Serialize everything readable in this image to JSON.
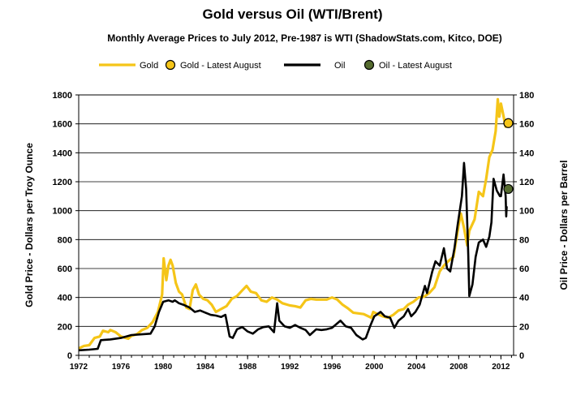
{
  "chart_data": {
    "type": "line",
    "title": "Gold versus Oil (WTI/Brent)",
    "subtitle": "Monthly Average Prices to July 2012, Pre-1987 is WTI (ShadowStats.com, Kitco, DOE)",
    "ylabel_left": "Gold Price - Dollars per Troy Ounce",
    "ylabel_right": "Oil Price - Dollars per Barrel",
    "xlim": [
      1972,
      2013.2
    ],
    "ylim_left": [
      0,
      1800
    ],
    "ylim_right": [
      0,
      180
    ],
    "x_ticks": [
      1972,
      1976,
      1980,
      1984,
      1988,
      1992,
      1996,
      2000,
      2004,
      2008,
      2012
    ],
    "y_ticks_left": [
      0,
      200,
      400,
      600,
      800,
      1000,
      1200,
      1400,
      1600,
      1800
    ],
    "y_ticks_right": [
      0,
      20,
      40,
      60,
      80,
      100,
      120,
      140,
      160,
      180
    ],
    "grid": "horizontal",
    "legend_position": "top",
    "colors": {
      "gold": "#f5c518",
      "gold_marker": "#f5c518",
      "oil": "#000000",
      "oil_marker": "#556b2f"
    },
    "legend": [
      {
        "label": "Gold",
        "kind": "line",
        "color": "#f5c518"
      },
      {
        "label": "Gold - Latest August",
        "kind": "marker",
        "color": "#f5c518"
      },
      {
        "label": "Oil",
        "kind": "line",
        "color": "#000000"
      },
      {
        "label": "Oil - Latest August",
        "kind": "marker",
        "color": "#556b2f"
      }
    ],
    "series": [
      {
        "name": "Gold",
        "axis": "left",
        "points": [
          [
            1972.0,
            48
          ],
          [
            1972.5,
            65
          ],
          [
            1973.0,
            70
          ],
          [
            1973.5,
            120
          ],
          [
            1974.0,
            130
          ],
          [
            1974.3,
            170
          ],
          [
            1974.8,
            160
          ],
          [
            1975.0,
            175
          ],
          [
            1975.5,
            160
          ],
          [
            1976.0,
            130
          ],
          [
            1976.7,
            115
          ],
          [
            1977.0,
            135
          ],
          [
            1977.5,
            145
          ],
          [
            1978.0,
            175
          ],
          [
            1978.5,
            190
          ],
          [
            1979.0,
            230
          ],
          [
            1979.5,
            300
          ],
          [
            1979.9,
            420
          ],
          [
            1980.05,
            670
          ],
          [
            1980.3,
            520
          ],
          [
            1980.5,
            620
          ],
          [
            1980.7,
            660
          ],
          [
            1980.9,
            620
          ],
          [
            1981.2,
            500
          ],
          [
            1981.5,
            440
          ],
          [
            1981.8,
            420
          ],
          [
            1982.2,
            330
          ],
          [
            1982.5,
            320
          ],
          [
            1982.8,
            450
          ],
          [
            1983.1,
            490
          ],
          [
            1983.4,
            420
          ],
          [
            1983.8,
            390
          ],
          [
            1984.2,
            380
          ],
          [
            1984.6,
            350
          ],
          [
            1985.0,
            300
          ],
          [
            1985.5,
            320
          ],
          [
            1986.0,
            340
          ],
          [
            1986.5,
            390
          ],
          [
            1987.0,
            410
          ],
          [
            1987.5,
            450
          ],
          [
            1987.9,
            480
          ],
          [
            1988.3,
            440
          ],
          [
            1988.8,
            430
          ],
          [
            1989.3,
            380
          ],
          [
            1989.8,
            370
          ],
          [
            1990.3,
            400
          ],
          [
            1990.8,
            385
          ],
          [
            1991.3,
            360
          ],
          [
            1992.0,
            345
          ],
          [
            1992.5,
            340
          ],
          [
            1993.0,
            330
          ],
          [
            1993.5,
            380
          ],
          [
            1994.0,
            390
          ],
          [
            1994.5,
            385
          ],
          [
            1995.0,
            385
          ],
          [
            1995.5,
            385
          ],
          [
            1996.0,
            400
          ],
          [
            1996.5,
            385
          ],
          [
            1997.0,
            350
          ],
          [
            1997.5,
            325
          ],
          [
            1998.0,
            295
          ],
          [
            1998.5,
            290
          ],
          [
            1999.0,
            285
          ],
          [
            1999.7,
            260
          ],
          [
            1999.9,
            300
          ],
          [
            2000.3,
            285
          ],
          [
            2000.8,
            270
          ],
          [
            2001.3,
            260
          ],
          [
            2001.8,
            280
          ],
          [
            2002.3,
            310
          ],
          [
            2002.8,
            320
          ],
          [
            2003.2,
            350
          ],
          [
            2003.7,
            370
          ],
          [
            2004.2,
            400
          ],
          [
            2004.7,
            405
          ],
          [
            2005.2,
            430
          ],
          [
            2005.7,
            470
          ],
          [
            2006.2,
            580
          ],
          [
            2006.6,
            620
          ],
          [
            2007.0,
            650
          ],
          [
            2007.5,
            680
          ],
          [
            2008.0,
            900
          ],
          [
            2008.2,
            980
          ],
          [
            2008.5,
            880
          ],
          [
            2008.8,
            760
          ],
          [
            2009.0,
            860
          ],
          [
            2009.5,
            940
          ],
          [
            2009.9,
            1130
          ],
          [
            2010.3,
            1100
          ],
          [
            2010.6,
            1220
          ],
          [
            2010.9,
            1370
          ],
          [
            2011.2,
            1420
          ],
          [
            2011.5,
            1550
          ],
          [
            2011.7,
            1770
          ],
          [
            2011.85,
            1650
          ],
          [
            2012.0,
            1740
          ],
          [
            2012.2,
            1670
          ],
          [
            2012.45,
            1580
          ],
          [
            2012.6,
            1590
          ]
        ]
      },
      {
        "name": "Gold - Latest August",
        "axis": "left",
        "marker": true,
        "points": [
          [
            2012.7,
            1605
          ]
        ]
      },
      {
        "name": "Oil",
        "axis": "right",
        "points": [
          [
            1972.0,
            3.5
          ],
          [
            1973.0,
            3.9
          ],
          [
            1973.8,
            4.5
          ],
          [
            1974.1,
            10.5
          ],
          [
            1975.0,
            11
          ],
          [
            1976.0,
            12
          ],
          [
            1977.0,
            14
          ],
          [
            1978.0,
            14.5
          ],
          [
            1978.8,
            15
          ],
          [
            1979.2,
            20
          ],
          [
            1979.6,
            30
          ],
          [
            1980.0,
            37
          ],
          [
            1980.5,
            38
          ],
          [
            1980.9,
            37
          ],
          [
            1981.1,
            38
          ],
          [
            1981.5,
            36
          ],
          [
            1981.9,
            35
          ],
          [
            1982.5,
            33
          ],
          [
            1983.0,
            30
          ],
          [
            1983.5,
            31
          ],
          [
            1984.0,
            29.5
          ],
          [
            1984.5,
            28
          ],
          [
            1985.0,
            27.5
          ],
          [
            1985.5,
            26.5
          ],
          [
            1985.9,
            28
          ],
          [
            1986.3,
            13
          ],
          [
            1986.6,
            12
          ],
          [
            1987.0,
            18
          ],
          [
            1987.5,
            19.5
          ],
          [
            1988.0,
            16.5
          ],
          [
            1988.5,
            15
          ],
          [
            1989.0,
            18
          ],
          [
            1989.5,
            19.5
          ],
          [
            1990.0,
            20
          ],
          [
            1990.5,
            16
          ],
          [
            1990.8,
            36
          ],
          [
            1991.0,
            24
          ],
          [
            1991.5,
            20
          ],
          [
            1992.0,
            19
          ],
          [
            1992.5,
            21
          ],
          [
            1993.0,
            19
          ],
          [
            1993.5,
            17.5
          ],
          [
            1993.9,
            14
          ],
          [
            1994.5,
            18
          ],
          [
            1995.0,
            17.5
          ],
          [
            1995.5,
            18
          ],
          [
            1996.0,
            19
          ],
          [
            1996.8,
            24
          ],
          [
            1997.3,
            20
          ],
          [
            1997.8,
            19
          ],
          [
            1998.3,
            14
          ],
          [
            1998.9,
            11
          ],
          [
            1999.2,
            12
          ],
          [
            1999.6,
            20
          ],
          [
            2000.0,
            27
          ],
          [
            2000.6,
            30
          ],
          [
            2001.0,
            27
          ],
          [
            2001.5,
            26
          ],
          [
            2001.9,
            19
          ],
          [
            2002.3,
            24
          ],
          [
            2002.8,
            27
          ],
          [
            2003.2,
            32
          ],
          [
            2003.5,
            27
          ],
          [
            2003.9,
            30
          ],
          [
            2004.3,
            35
          ],
          [
            2004.8,
            48
          ],
          [
            2005.0,
            43
          ],
          [
            2005.5,
            58
          ],
          [
            2005.8,
            65
          ],
          [
            2006.2,
            62
          ],
          [
            2006.6,
            74
          ],
          [
            2006.9,
            60
          ],
          [
            2007.2,
            58
          ],
          [
            2007.6,
            74
          ],
          [
            2007.9,
            90
          ],
          [
            2008.3,
            110
          ],
          [
            2008.5,
            133
          ],
          [
            2008.7,
            115
          ],
          [
            2008.9,
            70
          ],
          [
            2009.0,
            41
          ],
          [
            2009.3,
            49
          ],
          [
            2009.6,
            68
          ],
          [
            2009.9,
            78
          ],
          [
            2010.3,
            80
          ],
          [
            2010.6,
            75
          ],
          [
            2010.9,
            82
          ],
          [
            2011.1,
            92
          ],
          [
            2011.3,
            122
          ],
          [
            2011.6,
            114
          ],
          [
            2011.9,
            110
          ],
          [
            2012.0,
            110
          ],
          [
            2012.25,
            125
          ],
          [
            2012.45,
            110
          ],
          [
            2012.5,
            96
          ],
          [
            2012.55,
            103
          ]
        ]
      },
      {
        "name": "Oil - Latest August",
        "axis": "right",
        "marker": true,
        "points": [
          [
            2012.7,
            115
          ]
        ]
      }
    ]
  }
}
